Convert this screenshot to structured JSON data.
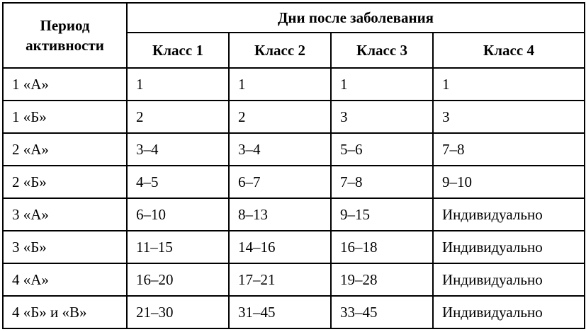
{
  "table": {
    "header": {
      "period_col": "Период активности",
      "days_group": "Дни после заболевания",
      "class_cols": [
        "Класс 1",
        "Класс 2",
        "Класс 3",
        "Класс 4"
      ]
    },
    "rows": [
      {
        "period": "1 «А»",
        "values": [
          "1",
          "1",
          "1",
          "1"
        ]
      },
      {
        "period": "1 «Б»",
        "values": [
          "2",
          "2",
          "3",
          "3"
        ]
      },
      {
        "period": "2 «А»",
        "values": [
          "3–4",
          "3–4",
          "5–6",
          "7–8"
        ]
      },
      {
        "period": "2 «Б»",
        "values": [
          "4–5",
          "6–7",
          "7–8",
          "9–10"
        ]
      },
      {
        "period": "3 «А»",
        "values": [
          "6–10",
          "8–13",
          "9–15",
          "Индивидуально"
        ]
      },
      {
        "period": "3 «Б»",
        "values": [
          "11–15",
          "14–16",
          "16–18",
          "Индивидуально"
        ]
      },
      {
        "period": "4 «А»",
        "values": [
          "16–20",
          "17–21",
          "19–28",
          "Индивидуально"
        ]
      },
      {
        "period": "4 «Б» и «В»",
        "values": [
          "21–30",
          "31–45",
          "33–45",
          "Индивидуально"
        ]
      }
    ]
  },
  "colors": {
    "border": "#000000",
    "background": "#ffffff",
    "text": "#000000"
  }
}
